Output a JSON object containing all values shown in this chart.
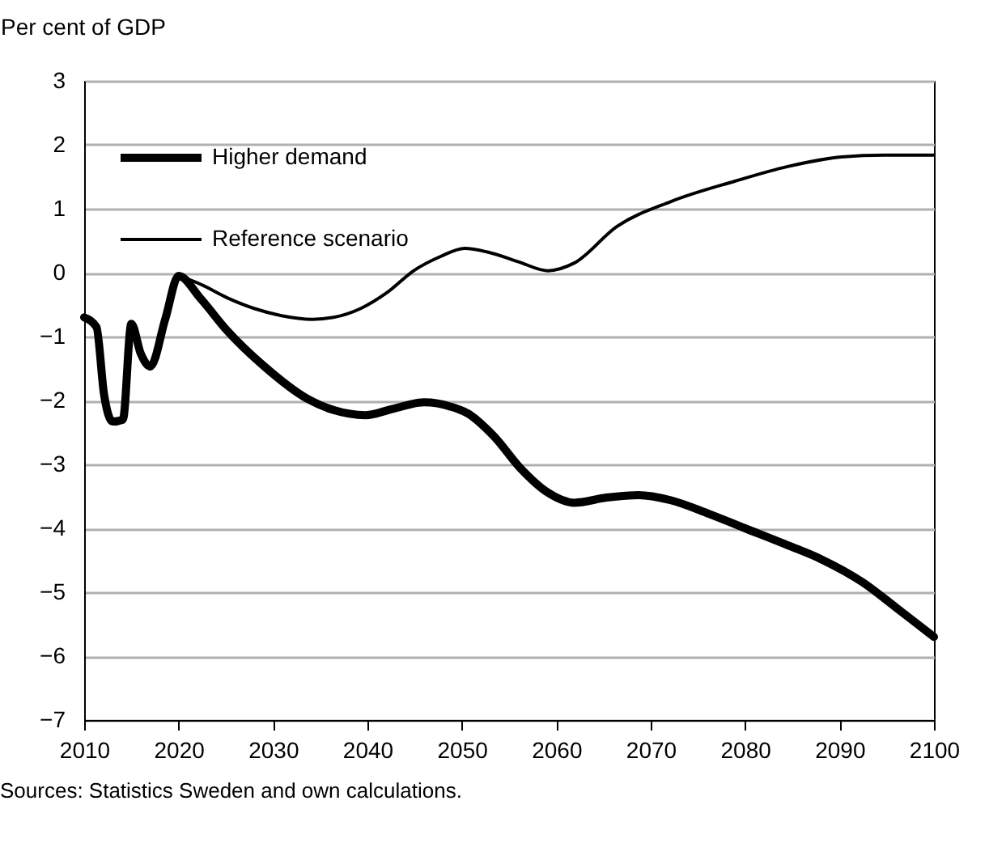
{
  "chart_data": {
    "type": "line",
    "ylabel": "Per cent of GDP",
    "annotations": [
      "Sources: Statistics Sweden and own calculations."
    ],
    "series": [
      {
        "name": "Higher demand",
        "color": "#000000",
        "x": [
          2010,
          2011.3,
          2012.1,
          2013,
          2014.1,
          2015,
          2016,
          2017,
          2018.6,
          2020,
          2022.3,
          2025.1,
          2029.1,
          2033.6,
          2036.4,
          2039.8,
          2042.7,
          2046,
          2048.9,
          2050.6,
          2053.4,
          2056.2,
          2059.1,
          2061.9,
          2065.3,
          2068.7,
          2072.1,
          2076.1,
          2080,
          2084.6,
          2088,
          2092.5,
          2095.9,
          2100
        ],
        "values": [
          -0.7,
          -0.85,
          -1.9,
          -2.33,
          -2.3,
          -0.8,
          -1.27,
          -1.47,
          -0.72,
          -0.05,
          -0.4,
          -0.9,
          -1.47,
          -1.97,
          -2.15,
          -2.23,
          -2.13,
          -2.03,
          -2.1,
          -2.2,
          -2.56,
          -3.06,
          -3.44,
          -3.6,
          -3.52,
          -3.48,
          -3.56,
          -3.77,
          -4.0,
          -4.27,
          -4.48,
          -4.85,
          -5.23,
          -5.7
        ]
      },
      {
        "name": "Reference scenario",
        "color": "#000000",
        "x": [
          2020,
          2022.3,
          2025.1,
          2028,
          2030.8,
          2034.2,
          2036.4,
          2039.3,
          2042.1,
          2044.9,
          2047.7,
          2050.3,
          2052.8,
          2056,
          2059.1,
          2061.9,
          2066.4,
          2072.1,
          2078.9,
          2084.5,
          2090.2,
          2094.7,
          2100
        ],
        "values": [
          -0.05,
          -0.18,
          -0.39,
          -0.56,
          -0.67,
          -0.73,
          -0.7,
          -0.56,
          -0.31,
          0.03,
          0.25,
          0.38,
          0.32,
          0.17,
          0.03,
          0.15,
          0.72,
          1.11,
          1.43,
          1.66,
          1.81,
          1.84,
          1.84
        ]
      }
    ],
    "xlim": [
      2010,
      2100
    ],
    "xticks": [
      2010,
      2020,
      2030,
      2040,
      2050,
      2060,
      2070,
      2080,
      2090,
      2100
    ],
    "ylim": [
      -7,
      3
    ],
    "yticks": [
      -7,
      -6,
      -5,
      -4,
      -3,
      -2,
      -1,
      0,
      1,
      2,
      3
    ],
    "grid": "y",
    "legend": "top left",
    "line_style": "solid",
    "marker": "none"
  }
}
